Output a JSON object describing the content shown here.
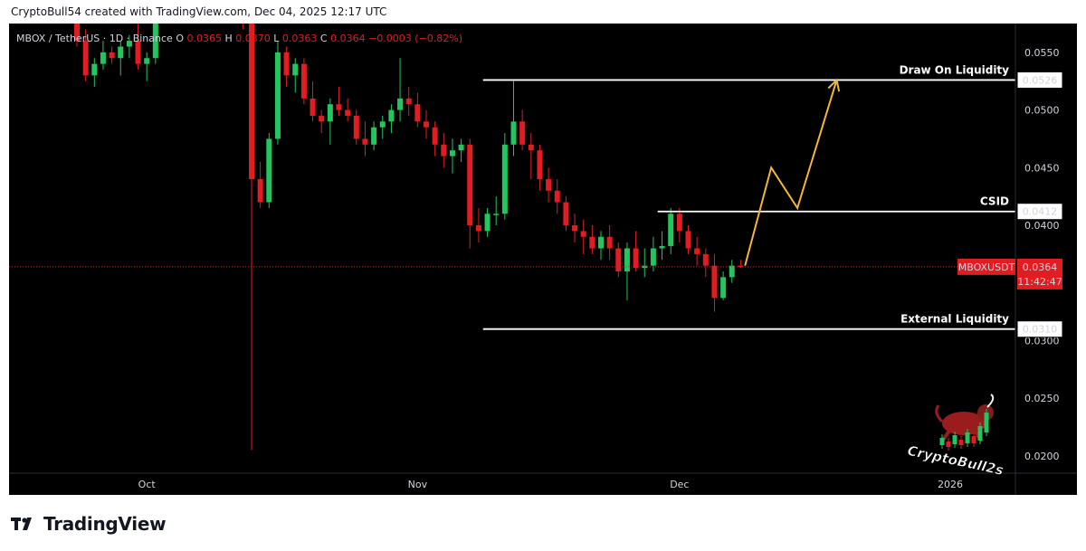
{
  "header": {
    "attribution": "CryptoBull54 created with TradingView.com, Dec 04, 2025 12:17 UTC"
  },
  "legend": {
    "symbol": "MBOX / TetherUS · 1D · Binance",
    "o_label": "O",
    "o_value": "0.0365",
    "h_label": "H",
    "h_value": "0.0370",
    "l_label": "L",
    "l_value": "0.0363",
    "c_label": "C",
    "c_value": "0.0364",
    "change": "−0.0003 (−0.82%)"
  },
  "annotations": {
    "draw_on_liquidity": "Draw On Liquidity",
    "csid": "CSID",
    "external_liquidity": "External Liquidity"
  },
  "price_tag": {
    "symbol": "MBOXUSDT",
    "price": "0.0364",
    "countdown": "11:42:47"
  },
  "watermark": {
    "text": "CryptoBull2s"
  },
  "footer": {
    "brand": "TradingView"
  },
  "colors": {
    "up": "#22c55e",
    "down": "#e11d21",
    "annotation": "#ffffff",
    "projection": "#f5b731",
    "background": "#000000"
  },
  "chart_data": {
    "type": "candlestick",
    "symbol": "MBOXUSDT",
    "interval": "1D",
    "exchange": "Binance",
    "ylim": [
      0.0185,
      0.0575
    ],
    "y_ticks": [
      "0.0550",
      "0.0500",
      "0.0450",
      "0.0400",
      "0.0300",
      "0.0250",
      "0.0200"
    ],
    "x_ticks": [
      {
        "label": "Oct",
        "index": 8
      },
      {
        "label": "Nov",
        "index": 39
      },
      {
        "label": "Dec",
        "index": 69
      },
      {
        "label": "2026",
        "index": 100
      }
    ],
    "candles": [
      [
        0.0585,
        0.06,
        0.0555,
        0.056
      ],
      [
        0.056,
        0.057,
        0.0525,
        0.053
      ],
      [
        0.053,
        0.0545,
        0.052,
        0.054
      ],
      [
        0.054,
        0.056,
        0.0535,
        0.055
      ],
      [
        0.055,
        0.0555,
        0.054,
        0.0545
      ],
      [
        0.0545,
        0.056,
        0.053,
        0.0555
      ],
      [
        0.0555,
        0.0565,
        0.0545,
        0.056
      ],
      [
        0.056,
        0.058,
        0.0535,
        0.054
      ],
      [
        0.054,
        0.055,
        0.0525,
        0.0545
      ],
      [
        0.0545,
        0.059,
        0.054,
        0.0585
      ],
      [
        0.0585,
        0.06,
        0.0575,
        0.0595
      ],
      [
        0.0595,
        0.0605,
        0.058,
        0.059
      ],
      [
        0.059,
        0.06,
        0.0575,
        0.058
      ],
      [
        0.058,
        0.06,
        0.0575,
        0.0595
      ],
      [
        0.0595,
        0.061,
        0.0585,
        0.06
      ],
      [
        0.06,
        0.0605,
        0.058,
        0.0585
      ],
      [
        0.0585,
        0.0595,
        0.0575,
        0.059
      ],
      [
        0.059,
        0.06,
        0.058,
        0.0585
      ],
      [
        0.0585,
        0.06,
        0.0575,
        0.0595
      ],
      [
        0.0595,
        0.06,
        0.057,
        0.0575
      ],
      [
        0.0575,
        0.058,
        0.0205,
        0.044
      ],
      [
        0.044,
        0.0455,
        0.0415,
        0.042
      ],
      [
        0.042,
        0.048,
        0.0415,
        0.0475
      ],
      [
        0.0475,
        0.056,
        0.047,
        0.055
      ],
      [
        0.055,
        0.0555,
        0.052,
        0.053
      ],
      [
        0.053,
        0.0545,
        0.0515,
        0.054
      ],
      [
        0.054,
        0.0545,
        0.0505,
        0.051
      ],
      [
        0.051,
        0.0525,
        0.049,
        0.0495
      ],
      [
        0.0495,
        0.05,
        0.048,
        0.049
      ],
      [
        0.049,
        0.051,
        0.047,
        0.0505
      ],
      [
        0.0505,
        0.052,
        0.0495,
        0.05
      ],
      [
        0.05,
        0.051,
        0.049,
        0.0495
      ],
      [
        0.0495,
        0.05,
        0.047,
        0.0475
      ],
      [
        0.0475,
        0.049,
        0.046,
        0.047
      ],
      [
        0.047,
        0.049,
        0.0465,
        0.0485
      ],
      [
        0.0485,
        0.0495,
        0.0475,
        0.049
      ],
      [
        0.049,
        0.0505,
        0.048,
        0.05
      ],
      [
        0.05,
        0.0545,
        0.049,
        0.051
      ],
      [
        0.051,
        0.052,
        0.0495,
        0.0505
      ],
      [
        0.0505,
        0.0515,
        0.0485,
        0.049
      ],
      [
        0.049,
        0.05,
        0.0475,
        0.0485
      ],
      [
        0.0485,
        0.049,
        0.046,
        0.047
      ],
      [
        0.047,
        0.048,
        0.045,
        0.046
      ],
      [
        0.046,
        0.0475,
        0.0445,
        0.0465
      ],
      [
        0.0465,
        0.0475,
        0.0455,
        0.047
      ],
      [
        0.047,
        0.0475,
        0.038,
        0.04
      ],
      [
        0.04,
        0.0415,
        0.0385,
        0.0395
      ],
      [
        0.0395,
        0.0415,
        0.039,
        0.041
      ],
      [
        0.041,
        0.0425,
        0.04,
        0.041
      ],
      [
        0.041,
        0.048,
        0.0405,
        0.047
      ],
      [
        0.047,
        0.0525,
        0.046,
        0.049
      ],
      [
        0.049,
        0.05,
        0.0465,
        0.047
      ],
      [
        0.047,
        0.048,
        0.044,
        0.0465
      ],
      [
        0.0465,
        0.047,
        0.043,
        0.044
      ],
      [
        0.044,
        0.045,
        0.042,
        0.043
      ],
      [
        0.043,
        0.044,
        0.041,
        0.042
      ],
      [
        0.042,
        0.0425,
        0.0395,
        0.04
      ],
      [
        0.04,
        0.041,
        0.0385,
        0.0395
      ],
      [
        0.0395,
        0.0405,
        0.0375,
        0.039
      ],
      [
        0.039,
        0.04,
        0.0375,
        0.038
      ],
      [
        0.038,
        0.0395,
        0.037,
        0.039
      ],
      [
        0.039,
        0.04,
        0.037,
        0.038
      ],
      [
        0.038,
        0.0385,
        0.0355,
        0.036
      ],
      [
        0.036,
        0.0385,
        0.0335,
        0.038
      ],
      [
        0.038,
        0.0395,
        0.036,
        0.0363
      ],
      [
        0.0363,
        0.038,
        0.0355,
        0.0365
      ],
      [
        0.0365,
        0.039,
        0.036,
        0.038
      ],
      [
        0.038,
        0.0395,
        0.037,
        0.0382
      ],
      [
        0.0382,
        0.0415,
        0.0375,
        0.041
      ],
      [
        0.041,
        0.0415,
        0.0385,
        0.0395
      ],
      [
        0.0395,
        0.04,
        0.0375,
        0.038
      ],
      [
        0.038,
        0.039,
        0.0365,
        0.0375
      ],
      [
        0.0375,
        0.038,
        0.0355,
        0.0365
      ],
      [
        0.0365,
        0.0375,
        0.0325,
        0.0337
      ],
      [
        0.0337,
        0.036,
        0.0335,
        0.0355
      ],
      [
        0.0355,
        0.037,
        0.035,
        0.0365
      ],
      [
        0.0365,
        0.037,
        0.0363,
        0.0364
      ]
    ],
    "horizontal_levels": [
      {
        "label": "Draw On Liquidity",
        "value": 0.0526,
        "value_label": "0.0526"
      },
      {
        "label": "CSID",
        "value": 0.0412,
        "value_label": "0.0412"
      },
      {
        "label": "External Liquidity",
        "value": 0.031,
        "value_label": "0.0310"
      }
    ],
    "current_price": 0.0364,
    "projection_path": [
      [
        76.5,
        0.0365
      ],
      [
        79.5,
        0.045
      ],
      [
        82.5,
        0.0415
      ],
      [
        87,
        0.0526
      ]
    ]
  }
}
